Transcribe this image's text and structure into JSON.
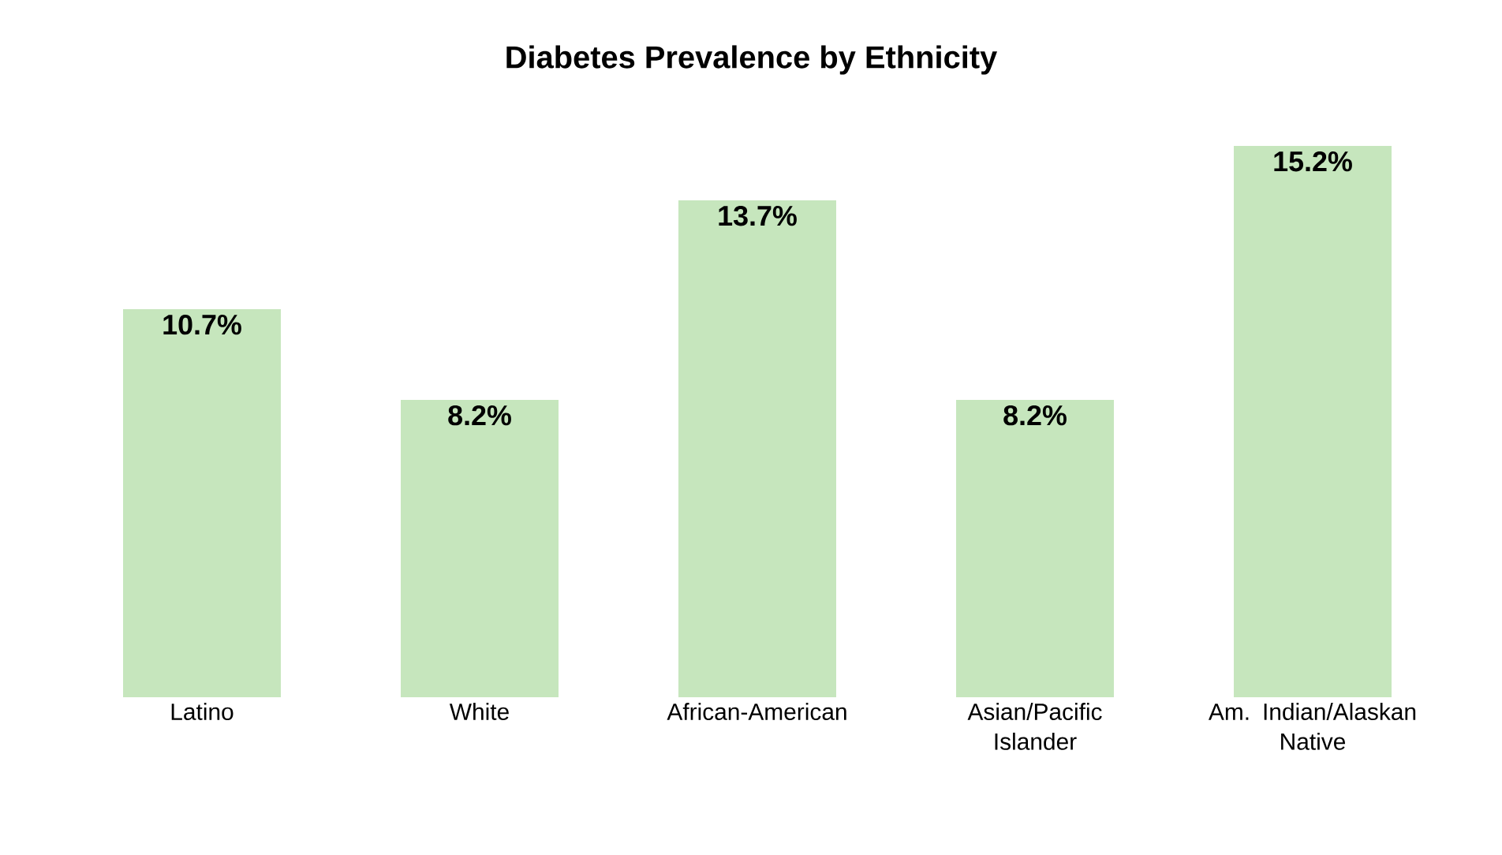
{
  "chart_data": {
    "type": "bar",
    "title": "Diabetes Prevalence by Ethnicity",
    "categories": [
      "Latino",
      "White",
      "African-American",
      "Asian/Pacific Islander",
      "Am. Indian/Alaskan Native"
    ],
    "values": [
      10.7,
      8.2,
      13.7,
      8.2,
      15.2
    ],
    "value_labels": [
      "10.7%",
      "8.2%",
      "13.7%",
      "8.2%",
      "15.2%"
    ],
    "color": "#c6e6bd"
  }
}
